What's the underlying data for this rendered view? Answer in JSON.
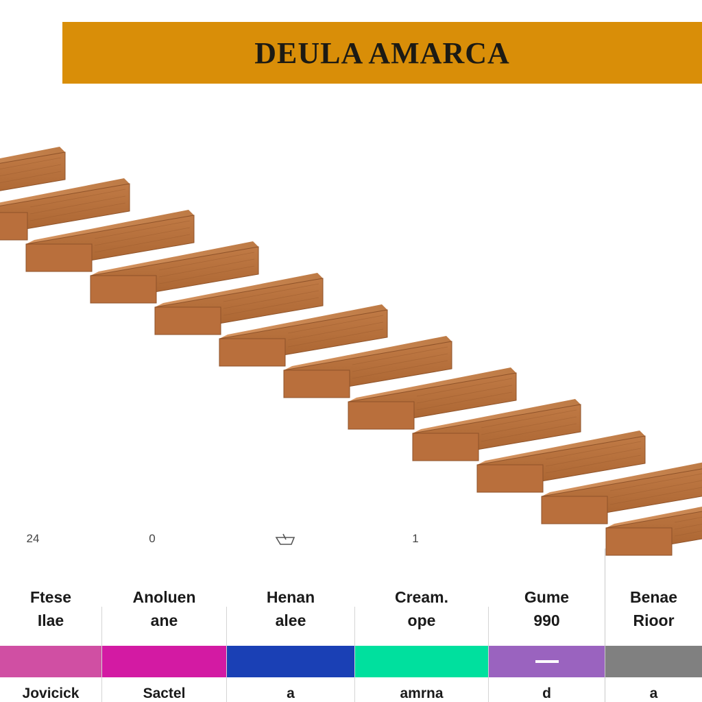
{
  "banner": {
    "title": "DEULA AMARCA",
    "background": "#d98e08"
  },
  "wood": {
    "top": "#c7834c",
    "front": "#b96f3c",
    "edge": "#8e5229",
    "step_count": 12
  },
  "markers": [
    "24",
    "0",
    "",
    "1"
  ],
  "columns": [
    {
      "label": "Ftese\nIlae",
      "color": "#d04fa3",
      "foot": "Jovicick"
    },
    {
      "label": "Anoluen\nane",
      "color": "#d31aa3",
      "foot": "Sactel"
    },
    {
      "label": "Henan\nalee",
      "color": "#1a40b5",
      "foot": "a"
    },
    {
      "label": "Cream.\nope",
      "color": "#00e09e",
      "foot": "amrna"
    },
    {
      "label": "Gume\n990",
      "color": "#9a63bf",
      "foot": "d"
    },
    {
      "label": "Benae\nRioor",
      "color": "#808080",
      "foot": "a"
    }
  ]
}
